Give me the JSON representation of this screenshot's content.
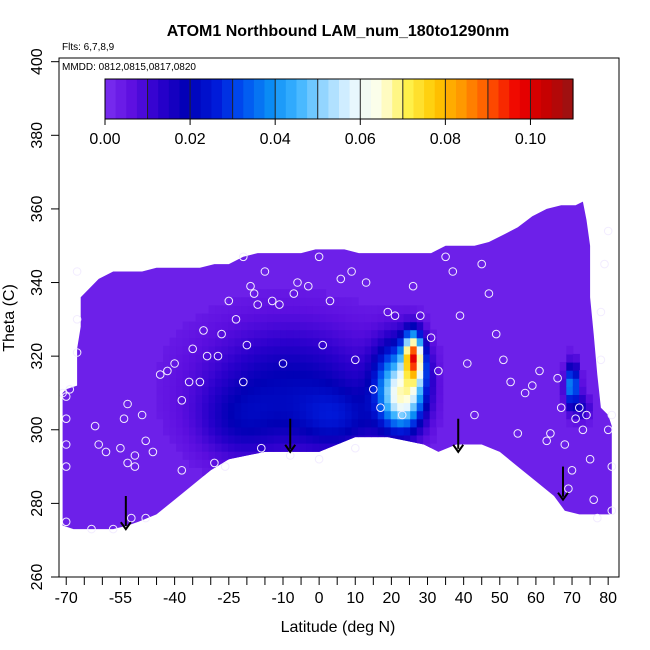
{
  "chart_data": {
    "type": "heatmap",
    "title": "ATOM1 Northbound LAM_num_180to1290nm",
    "subtitle_flights": "Flts: 6,7,8,9",
    "subtitle_dates": "MMDD: 0812,0815,0817,0820",
    "xlabel": "Latitude (deg N)",
    "ylabel": "Theta (C)",
    "xlim": [
      -72,
      83
    ],
    "ylim": [
      260,
      401
    ],
    "xticks": [
      -70,
      -55,
      -40,
      -25,
      -10,
      0,
      10,
      20,
      30,
      40,
      50,
      60,
      70,
      80
    ],
    "xtick_labels": [
      "-70",
      "-55",
      "-40",
      "-25",
      "-10",
      "0",
      "10",
      "20",
      "30",
      "40",
      "50",
      "60",
      "70",
      "80"
    ],
    "xminor_ticks": [
      -65,
      -60,
      -50,
      -45,
      -35,
      -30,
      -20,
      -15,
      -5,
      5,
      15,
      25,
      35,
      45,
      55,
      65,
      75
    ],
    "yticks": [
      260,
      280,
      300,
      320,
      340,
      360,
      380,
      400
    ],
    "ytick_labels": [
      "260",
      "280",
      "300",
      "320",
      "340",
      "360",
      "380",
      "400"
    ],
    "colorbar": {
      "range": [
        0,
        0.11
      ],
      "ticks": [
        0.0,
        0.02,
        0.04,
        0.06,
        0.08,
        0.1
      ],
      "tick_labels": [
        "0.00",
        "0.02",
        "0.04",
        "0.06",
        "0.08",
        "0.10"
      ],
      "colors": [
        "#7b2ff0",
        "#5d0fe0",
        "#2a00cc",
        "#0000b5",
        "#0018d8",
        "#0050f0",
        "#0a8cf5",
        "#3cb4ff",
        "#9ad8ff",
        "#e6f6ff",
        "#ffffe6",
        "#fff04a",
        "#ffc800",
        "#ff9600",
        "#ff5000",
        "#ee0000",
        "#c80000",
        "#961414"
      ]
    },
    "background_value": 0.003,
    "data_outline": [
      [
        -71,
        310
      ],
      [
        -70,
        311
      ],
      [
        -67,
        312
      ],
      [
        -67,
        322
      ],
      [
        -66,
        328
      ],
      [
        -66,
        336
      ],
      [
        -63,
        339
      ],
      [
        -61,
        341
      ],
      [
        -57,
        343
      ],
      [
        -53,
        343
      ],
      [
        -49,
        343
      ],
      [
        -45,
        344
      ],
      [
        -41,
        344
      ],
      [
        -37,
        344
      ],
      [
        -33,
        344
      ],
      [
        -29,
        345
      ],
      [
        -25,
        345
      ],
      [
        -21,
        347
      ],
      [
        -17,
        348
      ],
      [
        -13,
        348
      ],
      [
        -9,
        348
      ],
      [
        -5,
        348
      ],
      [
        -1,
        349
      ],
      [
        3,
        349
      ],
      [
        7,
        349
      ],
      [
        11,
        348
      ],
      [
        15,
        348
      ],
      [
        19,
        348
      ],
      [
        23,
        348
      ],
      [
        27,
        348
      ],
      [
        31,
        348
      ],
      [
        35,
        350
      ],
      [
        39,
        350
      ],
      [
        43,
        350
      ],
      [
        47,
        351
      ],
      [
        51,
        353
      ],
      [
        55,
        355
      ],
      [
        59,
        358
      ],
      [
        63,
        360
      ],
      [
        67,
        361
      ],
      [
        71,
        361
      ],
      [
        73,
        362
      ],
      [
        74,
        357
      ],
      [
        75,
        350
      ],
      [
        75,
        336
      ],
      [
        76,
        326
      ],
      [
        77,
        315
      ],
      [
        78,
        306
      ],
      [
        80,
        304
      ],
      [
        81,
        301
      ],
      [
        81,
        281
      ],
      [
        81,
        277
      ],
      [
        80,
        277
      ],
      [
        74,
        277
      ],
      [
        72,
        277
      ],
      [
        68,
        278
      ],
      [
        65,
        282
      ],
      [
        60,
        286
      ],
      [
        55,
        290
      ],
      [
        50,
        294
      ],
      [
        45,
        296
      ],
      [
        38,
        296
      ],
      [
        33,
        294
      ],
      [
        29,
        296
      ],
      [
        24,
        297
      ],
      [
        19,
        298
      ],
      [
        14,
        298
      ],
      [
        10,
        298
      ],
      [
        5,
        296
      ],
      [
        0,
        294
      ],
      [
        -5,
        294
      ],
      [
        -10,
        294
      ],
      [
        -15,
        294
      ],
      [
        -20,
        293
      ],
      [
        -25,
        292
      ],
      [
        -30,
        289
      ],
      [
        -35,
        285
      ],
      [
        -40,
        281
      ],
      [
        -45,
        277
      ],
      [
        -50,
        275
      ],
      [
        -53,
        274
      ],
      [
        -57,
        273
      ],
      [
        -60,
        273
      ],
      [
        -64,
        273
      ],
      [
        -68,
        273
      ],
      [
        -71,
        274
      ]
    ],
    "features": [
      {
        "lat": -8,
        "theta": 312,
        "sx": 17,
        "st": 12,
        "amp": 0.016
      },
      {
        "lat": -22,
        "theta": 302,
        "sx": 8,
        "st": 7,
        "amp": 0.009
      },
      {
        "lat": 5,
        "theta": 303,
        "sx": 8,
        "st": 6,
        "amp": 0.013
      },
      {
        "lat": 22,
        "theta": 312,
        "sx": 4.5,
        "st": 8,
        "amp": 0.045
      },
      {
        "lat": 24,
        "theta": 307,
        "sx": 3.5,
        "st": 5,
        "amp": 0.02
      },
      {
        "lat": 26,
        "theta": 321,
        "sx": 1.8,
        "st": 4,
        "amp": 0.06
      },
      {
        "lat": 27,
        "theta": 316,
        "sx": 2.2,
        "st": 5,
        "amp": 0.025
      },
      {
        "lat": 70,
        "theta": 312,
        "sx": 1.3,
        "st": 4,
        "amp": 0.04
      },
      {
        "lat": 73,
        "theta": 306,
        "sx": 1.5,
        "st": 2.5,
        "amp": 0.012
      }
    ],
    "sample_points": [
      [
        -71,
        310
      ],
      [
        -70,
        309
      ],
      [
        -69,
        311
      ],
      [
        -70,
        303
      ],
      [
        -70,
        296
      ],
      [
        -70,
        290
      ],
      [
        -70,
        275
      ],
      [
        -67,
        321
      ],
      [
        -67,
        330
      ],
      [
        -67,
        343
      ],
      [
        -63,
        273
      ],
      [
        -62,
        301
      ],
      [
        -61,
        296
      ],
      [
        -59,
        294
      ],
      [
        -57,
        273
      ],
      [
        -55,
        295
      ],
      [
        -54,
        303
      ],
      [
        -53,
        307
      ],
      [
        -53,
        291
      ],
      [
        -52,
        276
      ],
      [
        -51,
        293
      ],
      [
        -51,
        290
      ],
      [
        -49,
        304
      ],
      [
        -48,
        297
      ],
      [
        -48,
        276
      ],
      [
        -46,
        294
      ],
      [
        -44,
        315
      ],
      [
        -42,
        316
      ],
      [
        -40,
        318
      ],
      [
        -38,
        289
      ],
      [
        -38,
        308
      ],
      [
        -36,
        313
      ],
      [
        -35,
        322
      ],
      [
        -33,
        313
      ],
      [
        -32,
        327
      ],
      [
        -31,
        320
      ],
      [
        -29,
        291
      ],
      [
        -28,
        320
      ],
      [
        -27,
        326
      ],
      [
        -25,
        335
      ],
      [
        -23,
        330
      ],
      [
        -21,
        313
      ],
      [
        -21,
        347
      ],
      [
        -20,
        323
      ],
      [
        -19,
        339
      ],
      [
        -18,
        337
      ],
      [
        -17,
        334
      ],
      [
        -16,
        295
      ],
      [
        -15,
        343
      ],
      [
        -13,
        335
      ],
      [
        -11,
        334
      ],
      [
        -10,
        318
      ],
      [
        -7,
        337
      ],
      [
        -6,
        340
      ],
      [
        -3,
        339
      ],
      [
        0,
        347
      ],
      [
        1,
        323
      ],
      [
        3,
        335
      ],
      [
        6,
        341
      ],
      [
        9,
        343
      ],
      [
        10,
        319
      ],
      [
        13,
        340
      ],
      [
        15,
        311
      ],
      [
        17,
        306
      ],
      [
        19,
        332
      ],
      [
        21,
        331
      ],
      [
        23,
        304
      ],
      [
        26,
        339
      ],
      [
        28,
        331
      ],
      [
        31,
        325
      ],
      [
        33,
        316
      ],
      [
        35,
        347
      ],
      [
        37,
        343
      ],
      [
        39,
        331
      ],
      [
        41,
        318
      ],
      [
        43,
        304
      ],
      [
        45,
        345
      ],
      [
        47,
        337
      ],
      [
        49,
        326
      ],
      [
        51,
        319
      ],
      [
        53,
        313
      ],
      [
        55,
        299
      ],
      [
        57,
        310
      ],
      [
        59,
        312
      ],
      [
        61,
        316
      ],
      [
        63,
        297
      ],
      [
        64,
        299
      ],
      [
        66,
        314
      ],
      [
        67,
        306
      ],
      [
        68,
        296
      ],
      [
        69,
        284
      ],
      [
        70,
        289
      ],
      [
        71,
        303
      ],
      [
        72,
        306
      ],
      [
        73,
        300
      ],
      [
        74,
        304
      ],
      [
        75,
        292
      ],
      [
        76,
        281
      ],
      [
        77,
        276
      ],
      [
        78,
        319
      ],
      [
        78,
        332
      ],
      [
        79,
        345
      ],
      [
        80,
        354
      ],
      [
        80,
        300
      ],
      [
        81,
        304
      ],
      [
        81,
        290
      ],
      [
        81,
        278
      ],
      [
        10,
        295
      ],
      [
        0,
        292
      ],
      [
        -8,
        293
      ],
      [
        -26,
        290
      ]
    ],
    "arrows": [
      {
        "lat": -53.5,
        "theta_top": 282,
        "theta_bottom": 273
      },
      {
        "lat": -8,
        "theta_top": 303,
        "theta_bottom": 294
      },
      {
        "lat": 38.5,
        "theta_top": 303,
        "theta_bottom": 294
      },
      {
        "lat": 67.5,
        "theta_top": 290,
        "theta_bottom": 281
      }
    ]
  }
}
